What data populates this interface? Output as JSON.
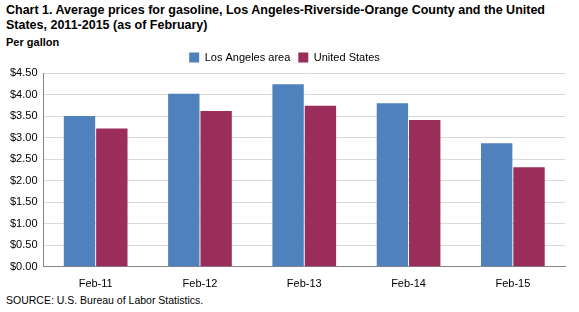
{
  "chart_data": {
    "type": "bar",
    "title": "Chart 1. Average prices for gasoline, Los Angeles-Riverside-Orange County  and the United States, 2011-2015  (as of February)",
    "y_label": "Per gallon",
    "note": "SOURCE: U.S. Bureau of Labor Statistics.",
    "categories": [
      "Feb-11",
      "Feb-12",
      "Feb-13",
      "Feb-14",
      "Feb-15"
    ],
    "series": [
      {
        "name": "Los Angeles area",
        "color": "#4f81bd",
        "values": [
          3.5,
          4.02,
          4.24,
          3.8,
          2.87
        ]
      },
      {
        "name": "United States",
        "color": "#9b2d5b",
        "values": [
          3.21,
          3.62,
          3.74,
          3.41,
          2.31
        ]
      }
    ],
    "ylim": [
      0,
      4.5
    ],
    "yticks": [
      {
        "value": 0,
        "label": "$0.00"
      },
      {
        "value": 0.5,
        "label": "$0.50"
      },
      {
        "value": 1,
        "label": "$1.00"
      },
      {
        "value": 1.5,
        "label": "$1.50"
      },
      {
        "value": 2,
        "label": "$2.00"
      },
      {
        "value": 2.5,
        "label": "$2.50"
      },
      {
        "value": 3,
        "label": "$3.00"
      },
      {
        "value": 3.5,
        "label": "$3.50"
      },
      {
        "value": 4,
        "label": "$4.00"
      },
      {
        "value": 4.5,
        "label": "$4.50"
      }
    ],
    "grid": true,
    "legend": "top"
  }
}
